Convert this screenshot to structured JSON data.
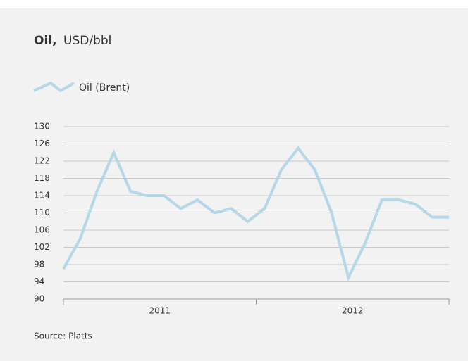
{
  "chart_data": {
    "type": "line",
    "title": "Oil,",
    "subtitle": "USD/bbl",
    "series": [
      {
        "name": "Oil (Brent)",
        "color": "#b5d7e8",
        "values": [
          97,
          104,
          115,
          124,
          115,
          114,
          114,
          111,
          113,
          110,
          111,
          108,
          111,
          120,
          125,
          120,
          110,
          95,
          103,
          113,
          113,
          112,
          109,
          109
        ]
      }
    ],
    "x_labels": [
      "2011",
      "2012"
    ],
    "ylim": [
      90,
      130
    ],
    "yticks": [
      90,
      94,
      98,
      102,
      106,
      110,
      114,
      118,
      122,
      126,
      130
    ],
    "grid": true,
    "source": "Source: Platts"
  }
}
